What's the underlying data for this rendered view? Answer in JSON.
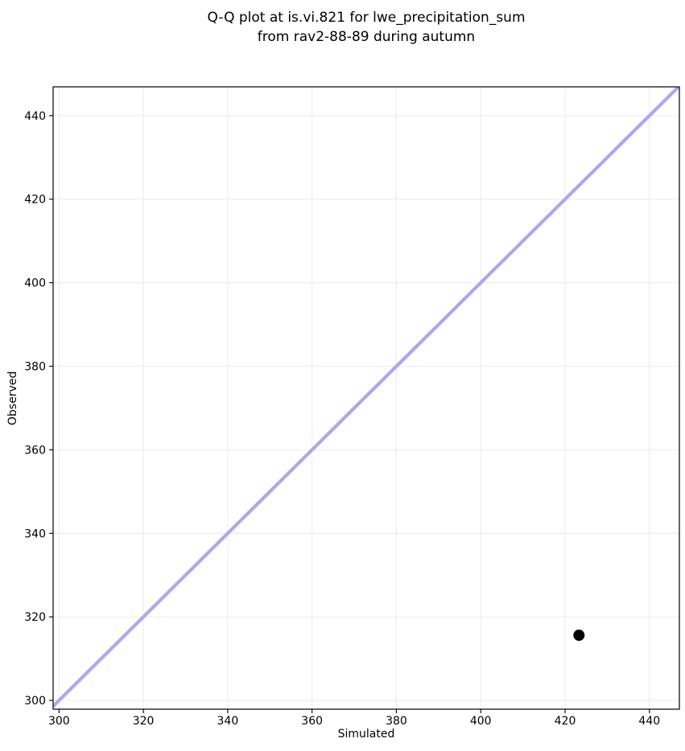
{
  "figure": {
    "title_line1": "Q-Q plot at is.vi.821 for lwe_precipitation_sum",
    "title_line2": "from rav2-88-89 during autumn"
  },
  "chart_data": {
    "type": "scatter",
    "title": "Q-Q plot at is.vi.821 for lwe_precipitation_sum\nfrom rav2-88-89 during autumn",
    "xlabel": "Simulated",
    "ylabel": "Observed",
    "xlim": [
      298.6,
      447.1
    ],
    "ylim": [
      297.9,
      446.9
    ],
    "x_ticks": [
      300,
      320,
      340,
      360,
      380,
      400,
      420,
      440
    ],
    "y_ticks": [
      300,
      320,
      340,
      360,
      380,
      400,
      420,
      440
    ],
    "grid": true,
    "legend": null,
    "series": [
      {
        "name": "identity-line",
        "type": "line",
        "slope": 1,
        "intercept": 0,
        "color": "#a9a9f0",
        "linewidth": 4.2
      },
      {
        "name": "quantile-points",
        "type": "scatter",
        "color": "#000000",
        "marker_diameter": 14,
        "points": [
          {
            "x": 423.3,
            "y": 315.6
          }
        ]
      }
    ],
    "colors": {
      "background": "#ffffff",
      "grid": "#ededed",
      "spine": "#000000",
      "tick": "#000000",
      "text": "#000000",
      "identity_line": "#a9a9f0",
      "marker": "#000000"
    }
  }
}
